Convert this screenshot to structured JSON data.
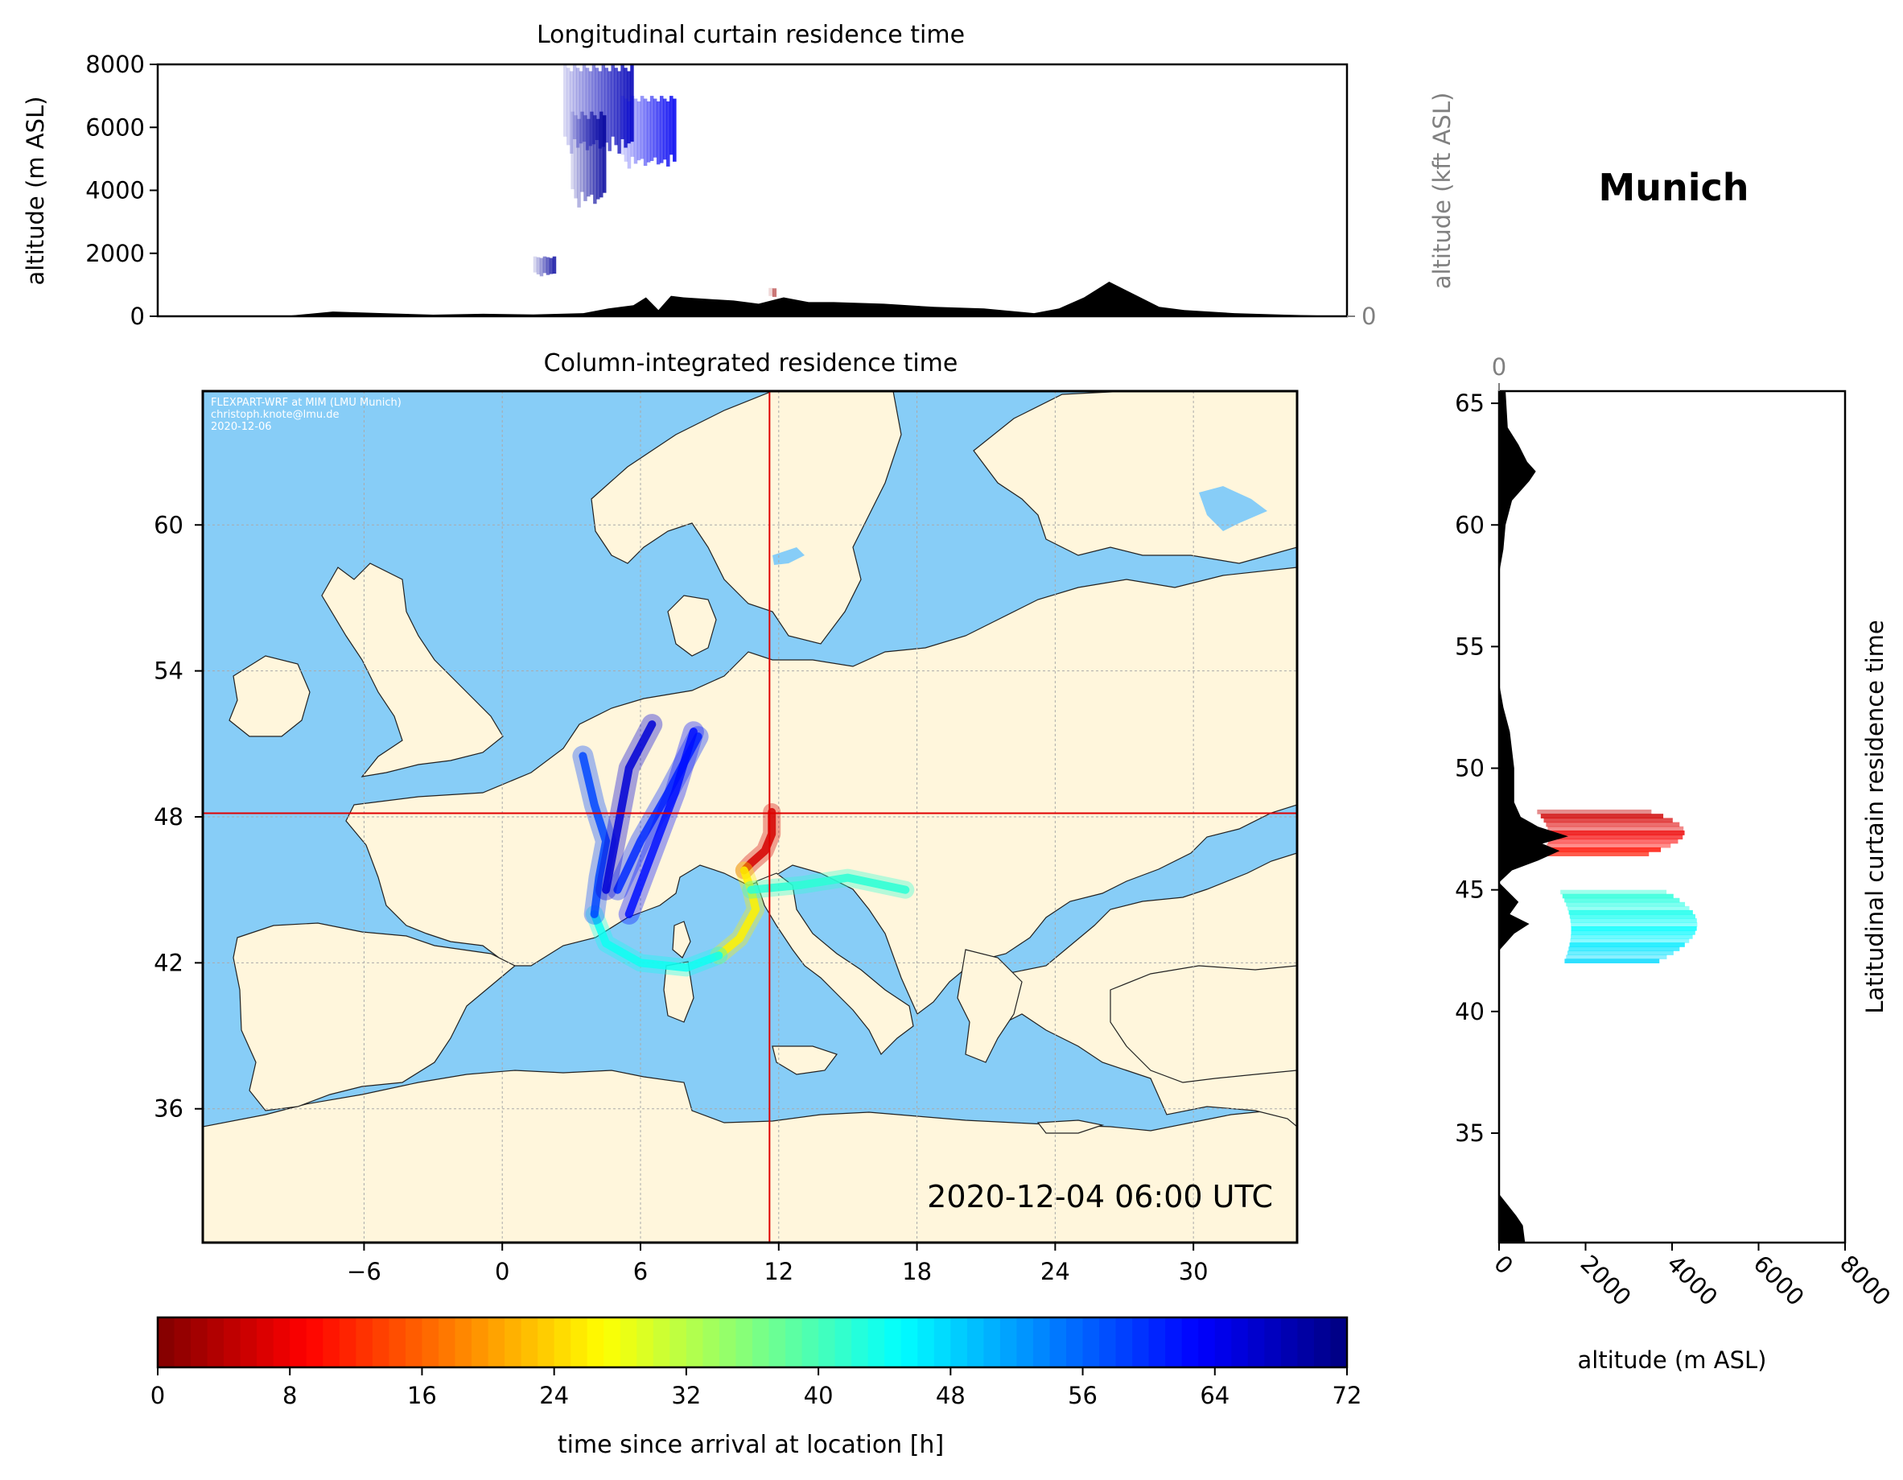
{
  "location_title": "Munich",
  "timestamp": "2020-12-04 06:00 UTC",
  "credits": [
    "FLEXPART-WRF at MIM (LMU Munich)",
    "christoph.knote@lmu.de",
    "2020-12-06"
  ],
  "colors": {
    "ocean": "#87cdf7",
    "land": "#fff6dc",
    "crosshair": "#e00000",
    "terrain": "#000000"
  },
  "chart_data": [
    {
      "type": "heatmap",
      "title": "Longitudinal curtain residence time",
      "ylabel": "altitude (m ASL)",
      "ylabel_right": "altitude (kft ASL)",
      "xlim": [
        -13,
        34.5
      ],
      "ylim": [
        0,
        8000
      ],
      "yticks": [
        0,
        2000,
        4000,
        6000,
        8000
      ],
      "yticks_right": [
        0,
        50,
        100
      ],
      "grid": "horizontal",
      "terrain_profile": {
        "lon": [
          -13,
          -8,
          -6,
          -4,
          -2,
          0,
          2,
          4,
          5,
          6,
          6.5,
          7,
          7.5,
          8,
          9,
          10,
          11,
          12,
          13,
          14,
          16,
          18,
          20,
          22,
          23,
          24,
          25,
          26,
          27,
          28,
          30,
          32,
          34.5
        ],
        "alt": [
          0,
          0,
          150,
          100,
          50,
          80,
          60,
          100,
          250,
          350,
          600,
          200,
          650,
          600,
          550,
          500,
          400,
          600,
          450,
          450,
          400,
          300,
          250,
          100,
          250,
          600,
          1100,
          700,
          300,
          200,
          100,
          50,
          0
        ]
      },
      "plumes": [
        {
          "lon": [
            3.2,
            6.0
          ],
          "alt": [
            5300,
            8000
          ],
          "time_h": 68
        },
        {
          "lon": [
            5.5,
            7.7
          ],
          "alt": [
            4800,
            7000
          ],
          "time_h": 64
        },
        {
          "lon": [
            3.5,
            4.9
          ],
          "alt": [
            3600,
            6500
          ],
          "time_h": 70
        },
        {
          "lon": [
            2.0,
            2.9
          ],
          "alt": [
            1300,
            1900
          ],
          "time_h": 70
        },
        {
          "lon": [
            11.4,
            11.7
          ],
          "alt": [
            600,
            900
          ],
          "time_h": 2
        }
      ]
    },
    {
      "type": "heatmap",
      "title": "Column-integrated residence time",
      "xlim": [
        -13,
        34.5
      ],
      "ylim": [
        30.5,
        65.5
      ],
      "xticks": [
        -6,
        0,
        6,
        12,
        18,
        24,
        30
      ],
      "yticks": [
        36,
        42,
        48,
        54,
        60
      ],
      "receptor": {
        "lon": 11.6,
        "lat": 48.15
      },
      "trajectory_bands": [
        {
          "lon": [
            11.7,
            11.7,
            11.4,
            10.8,
            10.5
          ],
          "lat": [
            48.2,
            47.3,
            46.6,
            46.1,
            45.8
          ],
          "time_h": 6
        },
        {
          "lon": [
            10.5,
            10.8,
            11.0,
            10.3,
            9.4
          ],
          "lat": [
            45.8,
            45.0,
            44.2,
            43.0,
            42.3
          ],
          "time_h": 26
        },
        {
          "lon": [
            10.8,
            13.0,
            15.0,
            17.5
          ],
          "lat": [
            45.0,
            45.2,
            45.5,
            45.0
          ],
          "time_h": 42
        },
        {
          "lon": [
            9.4,
            8.0,
            6.0,
            4.5,
            4.0
          ],
          "lat": [
            42.3,
            41.8,
            42.0,
            42.8,
            44.0
          ],
          "time_h": 44
        },
        {
          "lon": [
            4.0,
            4.2,
            4.5,
            4.0,
            3.5
          ],
          "lat": [
            44.0,
            45.5,
            47.0,
            48.5,
            50.5
          ],
          "time_h": 58
        },
        {
          "lon": [
            5.0,
            6.0,
            7.2,
            8.5
          ],
          "lat": [
            45.0,
            47.0,
            49.0,
            51.3
          ],
          "time_h": 60
        },
        {
          "lon": [
            5.5,
            6.5,
            7.5,
            8.3
          ],
          "lat": [
            44.0,
            46.5,
            49.0,
            51.5
          ],
          "time_h": 62
        },
        {
          "lon": [
            4.5,
            5.0,
            5.5,
            6.5
          ],
          "lat": [
            45.0,
            47.5,
            50.0,
            51.8
          ],
          "time_h": 66
        }
      ]
    },
    {
      "type": "heatmap",
      "title": "Latitudinal curtain residence time",
      "xlabel": "altitude (m ASL)",
      "xlim": [
        0,
        8000
      ],
      "ylim": [
        30.5,
        65.5
      ],
      "xticks": [
        0,
        2000,
        4000,
        6000,
        8000
      ],
      "xticks_top": [
        0,
        50,
        100
      ],
      "yticks": [
        35,
        40,
        45,
        50,
        55,
        60,
        65
      ],
      "grid": "vertical",
      "terrain_profile": {
        "lat": [
          30.5,
          31.2,
          31.6,
          32.5,
          35,
          40,
          42.5,
          43.2,
          43.6,
          44.0,
          44.5,
          45.3,
          45.8,
          46.2,
          46.6,
          46.9,
          47.2,
          47.6,
          48.0,
          48.6,
          50,
          51.5,
          52.5,
          53.5,
          56,
          58,
          59,
          60,
          61,
          61.8,
          62.2,
          62.6,
          63.3,
          64,
          65.5
        ],
        "alt": [
          600,
          550,
          400,
          0,
          0,
          0,
          0,
          350,
          700,
          250,
          450,
          0,
          300,
          900,
          1400,
          1000,
          1600,
          900,
          500,
          350,
          350,
          250,
          100,
          0,
          0,
          0,
          100,
          150,
          300,
          700,
          850,
          650,
          450,
          200,
          150
        ]
      },
      "plumes": [
        {
          "lat": [
            46.4,
            48.3
          ],
          "alt": [
            0,
            4200
          ],
          "time_h": 5
        },
        {
          "lat": [
            42.0,
            45.0
          ],
          "alt": [
            600,
            4500
          ],
          "time_h": 42
        }
      ]
    },
    {
      "type": "heatmap",
      "title": "",
      "xlabel": "time since arrival at location [h]",
      "xlim": [
        0,
        72
      ],
      "xticks": [
        0,
        8,
        16,
        24,
        32,
        40,
        48,
        56,
        64,
        72
      ],
      "colormap": "jet_r"
    }
  ]
}
